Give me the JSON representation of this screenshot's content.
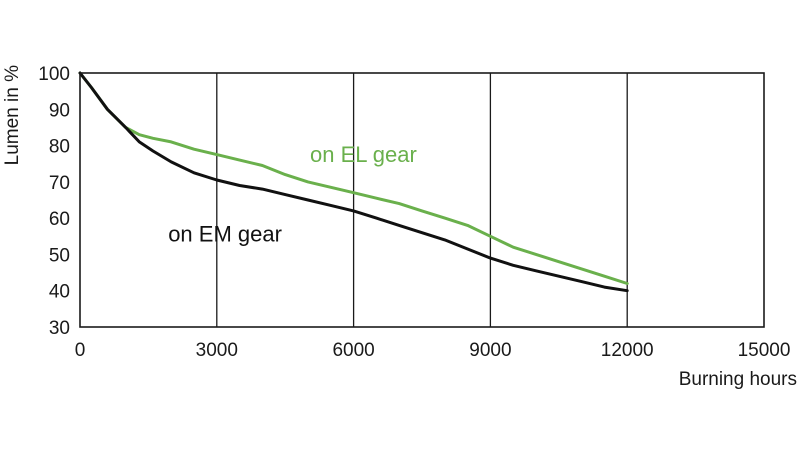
{
  "chart_data": {
    "type": "line",
    "xlabel": "Burning hours",
    "ylabel": "Lumen in %",
    "xlim": [
      0,
      15000
    ],
    "ylim": [
      30,
      100
    ],
    "xticks": [
      0,
      3000,
      6000,
      9000,
      12000,
      15000
    ],
    "yticks": [
      30,
      40,
      50,
      60,
      70,
      80,
      90,
      100
    ],
    "vertical_grid": true,
    "horizontal_grid": false,
    "series": [
      {
        "name": "on EL gear",
        "color": "#6ab04c",
        "x": [
          0,
          250,
          600,
          1000,
          1300,
          1600,
          2000,
          2500,
          3000,
          3500,
          4000,
          4500,
          5000,
          5500,
          6000,
          6500,
          7000,
          7500,
          8000,
          8500,
          9000,
          9500,
          10000,
          10500,
          11000,
          11500,
          12000
        ],
        "y": [
          100,
          96,
          90,
          85,
          83,
          82,
          81,
          79,
          77.5,
          76,
          74.5,
          72,
          70,
          68.5,
          67,
          65.5,
          64,
          62,
          60,
          58,
          55,
          52,
          50,
          48,
          46,
          44,
          42
        ]
      },
      {
        "name": "on EM gear",
        "color": "#111111",
        "x": [
          0,
          250,
          600,
          1000,
          1300,
          1600,
          2000,
          2500,
          3000,
          3500,
          4000,
          4500,
          5000,
          5500,
          6000,
          6500,
          7000,
          7500,
          8000,
          8500,
          9000,
          9500,
          10000,
          10500,
          11000,
          11500,
          12000
        ],
        "y": [
          100,
          96,
          90,
          85,
          81,
          78.5,
          75.5,
          72.5,
          70.5,
          69,
          68,
          66.5,
          65,
          63.5,
          62,
          60,
          58,
          56,
          54,
          51.5,
          49,
          47,
          45.5,
          44,
          42.5,
          41,
          40
        ]
      }
    ]
  }
}
